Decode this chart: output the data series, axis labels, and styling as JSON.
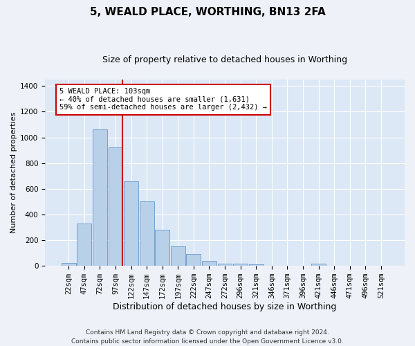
{
  "title": "5, WEALD PLACE, WORTHING, BN13 2FA",
  "subtitle": "Size of property relative to detached houses in Worthing",
  "xlabel": "Distribution of detached houses by size in Worthing",
  "ylabel": "Number of detached properties",
  "categories": [
    "22sqm",
    "47sqm",
    "72sqm",
    "97sqm",
    "122sqm",
    "147sqm",
    "172sqm",
    "197sqm",
    "222sqm",
    "247sqm",
    "272sqm",
    "296sqm",
    "321sqm",
    "346sqm",
    "371sqm",
    "396sqm",
    "421sqm",
    "446sqm",
    "471sqm",
    "496sqm",
    "521sqm"
  ],
  "values": [
    25,
    330,
    1060,
    920,
    660,
    500,
    280,
    150,
    95,
    40,
    20,
    15,
    10,
    0,
    0,
    0,
    15,
    0,
    0,
    0,
    0
  ],
  "bar_color": "#b8d0e8",
  "bar_edgecolor": "#6699cc",
  "vline_color": "#cc0000",
  "annotation_text": "5 WEALD PLACE: 103sqm\n← 40% of detached houses are smaller (1,631)\n59% of semi-detached houses are larger (2,432) →",
  "annotation_box_color": "#ffffff",
  "annotation_box_edgecolor": "#cc0000",
  "ylim": [
    0,
    1450
  ],
  "yticks": [
    0,
    200,
    400,
    600,
    800,
    1000,
    1200,
    1400
  ],
  "footer": "Contains HM Land Registry data © Crown copyright and database right 2024.\nContains public sector information licensed under the Open Government Licence v3.0.",
  "bg_color": "#eef2f8",
  "plot_bg_color": "#dce8f5",
  "grid_color": "#ffffff",
  "title_fontsize": 11,
  "subtitle_fontsize": 9,
  "axis_fontsize": 7.5,
  "ylabel_fontsize": 8,
  "xlabel_fontsize": 9,
  "footer_fontsize": 6.5,
  "annotation_fontsize": 7.5
}
